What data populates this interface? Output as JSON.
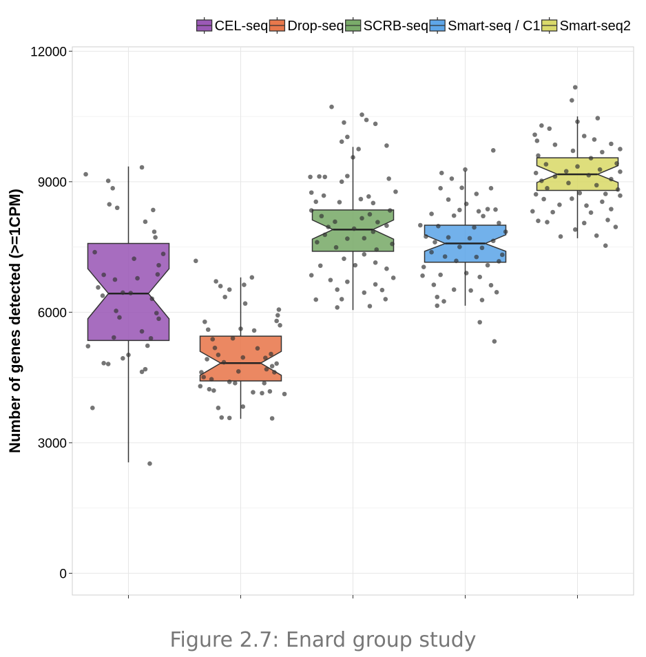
{
  "caption": "Figure 2.7: Enard group study",
  "chart_data": {
    "type": "box",
    "ylabel": "Number of genes detected (>=1CPM)",
    "xlabel": "",
    "ylim": [
      -500,
      12100
    ],
    "yticks": [
      0,
      3000,
      6000,
      9000,
      12000
    ],
    "yticklabels": [
      "0",
      "3000",
      "6000",
      "9000",
      "12000"
    ],
    "grid": true,
    "notched": true,
    "legend_position": "top",
    "categories": [
      "CEL-seq",
      "Drop-seq",
      "SCRB-seq",
      "Smart-seq / C1",
      "Smart-seq2"
    ],
    "series": [
      {
        "name": "CEL-seq",
        "color": "#9b59b6",
        "whisker_low": 2550,
        "q1": 5350,
        "median": 6430,
        "q3": 7580,
        "whisker_high": 9350,
        "notch_low": 5850,
        "notch_high": 7000,
        "points": [
          [
            -0.38,
            9170
          ],
          [
            -0.18,
            9020
          ],
          [
            -0.14,
            8850
          ],
          [
            -0.17,
            8480
          ],
          [
            -0.1,
            8400
          ],
          [
            0.12,
            9330
          ],
          [
            0.22,
            8350
          ],
          [
            0.15,
            8080
          ],
          [
            0.23,
            7850
          ],
          [
            0.24,
            7720
          ],
          [
            0.31,
            7340
          ],
          [
            0.27,
            7080
          ],
          [
            -0.3,
            7380
          ],
          [
            0.05,
            7230
          ],
          [
            0.26,
            6870
          ],
          [
            -0.22,
            6860
          ],
          [
            -0.12,
            6750
          ],
          [
            0.08,
            6780
          ],
          [
            -0.27,
            6570
          ],
          [
            0.02,
            6440
          ],
          [
            -0.05,
            6450
          ],
          [
            -0.23,
            6380
          ],
          [
            0.21,
            6310
          ],
          [
            -0.11,
            6030
          ],
          [
            0.25,
            5980
          ],
          [
            0.27,
            5850
          ],
          [
            -0.08,
            5880
          ],
          [
            0.12,
            5560
          ],
          [
            0.2,
            5400
          ],
          [
            -0.13,
            5420
          ],
          [
            -0.36,
            5220
          ],
          [
            0.17,
            5230
          ],
          [
            0.0,
            5020
          ],
          [
            -0.05,
            4940
          ],
          [
            -0.22,
            4830
          ],
          [
            -0.18,
            4810
          ],
          [
            0.15,
            4690
          ],
          [
            0.12,
            4630
          ],
          [
            -0.32,
            3800
          ],
          [
            0.19,
            2520
          ]
        ]
      },
      {
        "name": "Drop-seq",
        "color": "#e8784c",
        "whisker_low": 3550,
        "q1": 4420,
        "median": 4830,
        "q3": 5450,
        "whisker_high": 6800,
        "notch_low": 4550,
        "notch_high": 5100,
        "points": [
          [
            -0.4,
            7180
          ],
          [
            -0.22,
            6710
          ],
          [
            -0.18,
            6600
          ],
          [
            -0.1,
            6520
          ],
          [
            0.1,
            6800
          ],
          [
            0.03,
            6630
          ],
          [
            -0.14,
            6350
          ],
          [
            0.04,
            6200
          ],
          [
            0.34,
            6060
          ],
          [
            0.33,
            5930
          ],
          [
            -0.32,
            5780
          ],
          [
            0.32,
            5800
          ],
          [
            0.35,
            5700
          ],
          [
            -0.29,
            5600
          ],
          [
            0.0,
            5620
          ],
          [
            0.12,
            5580
          ],
          [
            -0.25,
            5380
          ],
          [
            -0.07,
            5400
          ],
          [
            -0.23,
            5180
          ],
          [
            0.15,
            5170
          ],
          [
            -0.2,
            5020
          ],
          [
            0.27,
            5040
          ],
          [
            -0.3,
            4920
          ],
          [
            0.02,
            4960
          ],
          [
            0.22,
            4950
          ],
          [
            -0.15,
            4850
          ],
          [
            0.32,
            4820
          ],
          [
            -0.35,
            4620
          ],
          [
            0.28,
            4760
          ],
          [
            0.23,
            4690
          ],
          [
            -0.02,
            4640
          ],
          [
            0.3,
            4620
          ],
          [
            -0.33,
            4510
          ],
          [
            -0.26,
            4460
          ],
          [
            -0.1,
            4400
          ],
          [
            -0.05,
            4370
          ],
          [
            0.21,
            4370
          ],
          [
            -0.36,
            4300
          ],
          [
            -0.28,
            4230
          ],
          [
            -0.24,
            4200
          ],
          [
            0.11,
            4160
          ],
          [
            0.19,
            4140
          ],
          [
            0.26,
            4180
          ],
          [
            0.39,
            4120
          ],
          [
            -0.2,
            3800
          ],
          [
            0.02,
            3830
          ],
          [
            -0.17,
            3580
          ],
          [
            -0.1,
            3570
          ],
          [
            0.28,
            3560
          ]
        ]
      },
      {
        "name": "SCRB-seq",
        "color": "#7aab6a",
        "whisker_low": 6050,
        "q1": 7400,
        "median": 7900,
        "q3": 8350,
        "whisker_high": 9800,
        "notch_low": 7680,
        "notch_high": 8120,
        "points": [
          [
            -0.19,
            10720
          ],
          [
            0.08,
            10540
          ],
          [
            0.12,
            10420
          ],
          [
            -0.08,
            10360
          ],
          [
            0.2,
            10330
          ],
          [
            -0.05,
            10030
          ],
          [
            -0.1,
            9920
          ],
          [
            0.3,
            9830
          ],
          [
            0.05,
            9750
          ],
          [
            0.0,
            9560
          ],
          [
            -0.3,
            9120
          ],
          [
            -0.25,
            9110
          ],
          [
            -0.38,
            9110
          ],
          [
            -0.05,
            9130
          ],
          [
            0.32,
            9070
          ],
          [
            -0.1,
            9000
          ],
          [
            -0.37,
            8750
          ],
          [
            -0.26,
            8680
          ],
          [
            0.38,
            8770
          ],
          [
            0.14,
            8660
          ],
          [
            0.07,
            8600
          ],
          [
            -0.33,
            8540
          ],
          [
            -0.12,
            8530
          ],
          [
            0.18,
            8510
          ],
          [
            -0.37,
            8340
          ],
          [
            0.33,
            8340
          ],
          [
            -0.28,
            8210
          ],
          [
            0.15,
            8250
          ],
          [
            0.08,
            8160
          ],
          [
            -0.16,
            8080
          ],
          [
            0.22,
            8070
          ],
          [
            0.3,
            7990
          ],
          [
            -0.22,
            7960
          ],
          [
            0.01,
            7920
          ],
          [
            0.18,
            7850
          ],
          [
            -0.25,
            7780
          ],
          [
            0.1,
            7700
          ],
          [
            -0.05,
            7690
          ],
          [
            0.35,
            7570
          ],
          [
            -0.32,
            7610
          ],
          [
            -0.15,
            7490
          ],
          [
            0.21,
            7440
          ],
          [
            0.1,
            7330
          ],
          [
            -0.08,
            7230
          ],
          [
            0.02,
            7080
          ],
          [
            0.2,
            7140
          ],
          [
            -0.29,
            7070
          ],
          [
            0.3,
            7000
          ],
          [
            -0.37,
            6850
          ],
          [
            0.36,
            6790
          ],
          [
            -0.2,
            6740
          ],
          [
            -0.05,
            6700
          ],
          [
            0.2,
            6640
          ],
          [
            -0.14,
            6520
          ],
          [
            0.1,
            6450
          ],
          [
            0.26,
            6510
          ],
          [
            0.29,
            6300
          ],
          [
            -0.33,
            6290
          ],
          [
            -0.1,
            6300
          ],
          [
            -0.14,
            6110
          ],
          [
            0.15,
            6140
          ]
        ]
      },
      {
        "name": "Smart-seq / C1",
        "color": "#5ea6e8",
        "whisker_low": 6150,
        "q1": 7150,
        "median": 7580,
        "q3": 8000,
        "whisker_high": 9250,
        "notch_low": 7400,
        "notch_high": 7780,
        "points": [
          [
            0.25,
            9720
          ],
          [
            0.0,
            9280
          ],
          [
            -0.21,
            9200
          ],
          [
            -0.12,
            9070
          ],
          [
            -0.22,
            8850
          ],
          [
            -0.03,
            8860
          ],
          [
            0.1,
            8720
          ],
          [
            0.23,
            8850
          ],
          [
            -0.15,
            8590
          ],
          [
            0.01,
            8490
          ],
          [
            0.2,
            8370
          ],
          [
            0.27,
            8360
          ],
          [
            -0.05,
            8350
          ],
          [
            0.12,
            8320
          ],
          [
            -0.3,
            8260
          ],
          [
            -0.1,
            8220
          ],
          [
            0.16,
            8210
          ],
          [
            -0.4,
            8000
          ],
          [
            0.3,
            8050
          ],
          [
            -0.24,
            7980
          ],
          [
            0.08,
            7950
          ],
          [
            0.36,
            7850
          ],
          [
            -0.35,
            7740
          ],
          [
            -0.15,
            7720
          ],
          [
            0.04,
            7700
          ],
          [
            -0.27,
            7610
          ],
          [
            0.25,
            7640
          ],
          [
            -0.05,
            7500
          ],
          [
            0.15,
            7480
          ],
          [
            -0.3,
            7380
          ],
          [
            0.33,
            7320
          ],
          [
            -0.18,
            7280
          ],
          [
            0.1,
            7270
          ],
          [
            0.3,
            7170
          ],
          [
            -0.08,
            7180
          ],
          [
            -0.37,
            7040
          ],
          [
            0.2,
            7080
          ],
          [
            -0.38,
            6840
          ],
          [
            -0.22,
            6860
          ],
          [
            0.01,
            6900
          ],
          [
            0.13,
            6810
          ],
          [
            -0.28,
            6630
          ],
          [
            0.23,
            6620
          ],
          [
            -0.1,
            6520
          ],
          [
            0.05,
            6500
          ],
          [
            0.28,
            6460
          ],
          [
            -0.25,
            6350
          ],
          [
            -0.19,
            6250
          ],
          [
            0.15,
            6280
          ],
          [
            -0.25,
            6150
          ],
          [
            0.13,
            5770
          ],
          [
            0.26,
            5330
          ]
        ]
      },
      {
        "name": "Smart-seq2",
        "color": "#d9d96a",
        "whisker_low": 7700,
        "q1": 8800,
        "median": 9170,
        "q3": 9550,
        "whisker_high": 10500,
        "notch_low": 8980,
        "notch_high": 9370,
        "points": [
          [
            -0.02,
            11170
          ],
          [
            -0.05,
            10870
          ],
          [
            0.18,
            10460
          ],
          [
            0.0,
            10380
          ],
          [
            -0.32,
            10290
          ],
          [
            -0.25,
            10220
          ],
          [
            -0.38,
            10080
          ],
          [
            0.06,
            10050
          ],
          [
            -0.36,
            9940
          ],
          [
            0.15,
            9970
          ],
          [
            0.3,
            9870
          ],
          [
            -0.2,
            9850
          ],
          [
            0.38,
            9750
          ],
          [
            -0.04,
            9710
          ],
          [
            0.22,
            9680
          ],
          [
            -0.35,
            9600
          ],
          [
            0.12,
            9540
          ],
          [
            0.35,
            9420
          ],
          [
            -0.28,
            9400
          ],
          [
            0.0,
            9350
          ],
          [
            -0.1,
            9240
          ],
          [
            0.2,
            9280
          ],
          [
            0.38,
            9230
          ],
          [
            -0.37,
            9200
          ],
          [
            -0.2,
            9120
          ],
          [
            0.1,
            9150
          ],
          [
            -0.32,
            9020
          ],
          [
            0.3,
            9060
          ],
          [
            -0.08,
            8970
          ],
          [
            0.17,
            8920
          ],
          [
            0.36,
            8820
          ],
          [
            -0.27,
            8850
          ],
          [
            -0.37,
            8710
          ],
          [
            0.02,
            8740
          ],
          [
            0.25,
            8720
          ],
          [
            0.38,
            8680
          ],
          [
            -0.3,
            8600
          ],
          [
            -0.05,
            8610
          ],
          [
            0.22,
            8540
          ],
          [
            -0.16,
            8470
          ],
          [
            0.08,
            8450
          ],
          [
            0.3,
            8370
          ],
          [
            -0.4,
            8320
          ],
          [
            -0.22,
            8300
          ],
          [
            0.12,
            8290
          ],
          [
            -0.35,
            8100
          ],
          [
            0.27,
            8120
          ],
          [
            -0.27,
            8070
          ],
          [
            0.06,
            8050
          ],
          [
            0.34,
            7960
          ],
          [
            -0.02,
            7900
          ],
          [
            0.17,
            7760
          ],
          [
            -0.15,
            7740
          ],
          [
            0.25,
            7530
          ]
        ]
      }
    ]
  }
}
